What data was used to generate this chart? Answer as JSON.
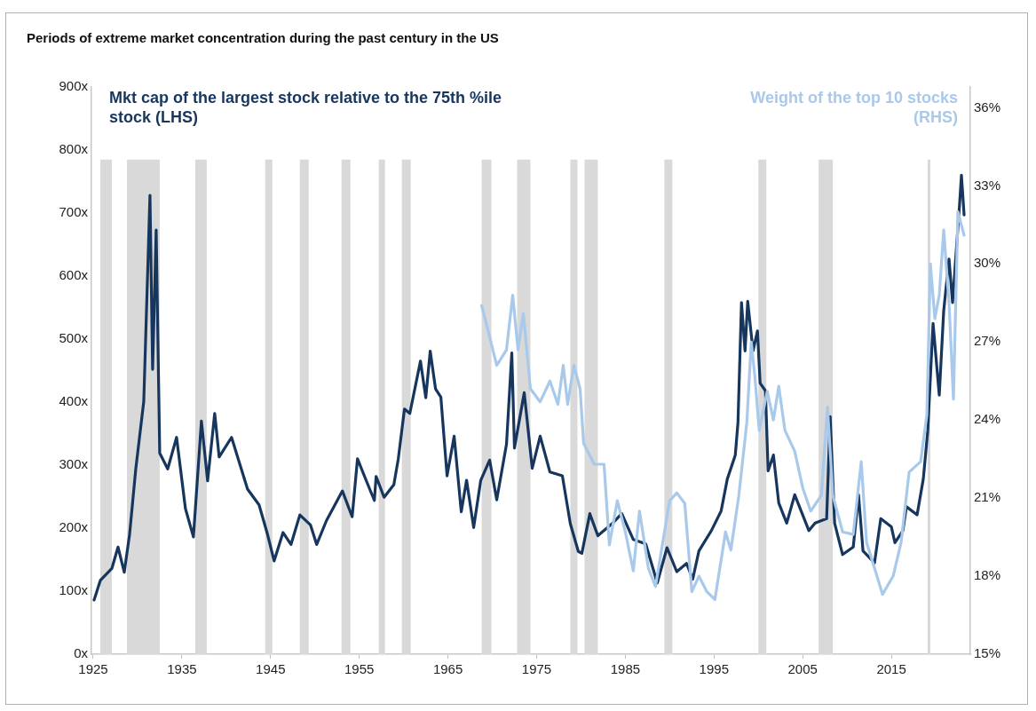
{
  "chart_data": {
    "type": "line",
    "title": "Periods of extreme market concentration during the past century in the US",
    "xlim": [
      1924.8,
      2023.9
    ],
    "xticks": [
      1925,
      1935,
      1945,
      1955,
      1965,
      1975,
      1985,
      1995,
      2005,
      2015
    ],
    "ylim": [
      0,
      900
    ],
    "yticks": [
      {
        "value": 0,
        "label": "0x"
      },
      {
        "value": 100,
        "label": "100x"
      },
      {
        "value": 200,
        "label": "200x"
      },
      {
        "value": 300,
        "label": "300x"
      },
      {
        "value": 400,
        "label": "400x"
      },
      {
        "value": 500,
        "label": "500x"
      },
      {
        "value": 600,
        "label": "600x"
      },
      {
        "value": 700,
        "label": "700x"
      },
      {
        "value": 800,
        "label": "800x"
      },
      {
        "value": 900,
        "label": "900x"
      }
    ],
    "y2lim": [
      15,
      36.8
    ],
    "y2ticks": [
      {
        "value": 15,
        "label": "15%"
      },
      {
        "value": 18,
        "label": "18%"
      },
      {
        "value": 21,
        "label": "21%"
      },
      {
        "value": 24,
        "label": "24%"
      },
      {
        "value": 27,
        "label": "27%"
      },
      {
        "value": 30,
        "label": "30%"
      },
      {
        "value": 33,
        "label": "33%"
      },
      {
        "value": 36,
        "label": "36%"
      }
    ],
    "grid": false,
    "marker": "none",
    "line_style": "solid",
    "series": [
      {
        "name": "Mkt cap of the largest stock relative to the 75th %ile stock (LHS)",
        "color": "#17365d",
        "axis": "y",
        "x": [
          1925.1,
          1925.8,
          1927.1,
          1927.8,
          1928.5,
          1929.1,
          1929.8,
          1930.7,
          1931.4,
          1931.7,
          1932.1,
          1932.5,
          1933.4,
          1934.4,
          1935.4,
          1936.3,
          1937.2,
          1937.9,
          1938.7,
          1939.2,
          1940.6,
          1942.4,
          1943.7,
          1944.6,
          1945.4,
          1946.4,
          1947.3,
          1948.3,
          1949.5,
          1950.2,
          1951.3,
          1953.1,
          1954.2,
          1954.8,
          1955.8,
          1956.7,
          1956.9,
          1957.8,
          1958.9,
          1959.4,
          1960.1,
          1960.7,
          1961.9,
          1962.5,
          1963.0,
          1963.6,
          1964.2,
          1964.9,
          1965.7,
          1966.5,
          1967.1,
          1967.9,
          1968.7,
          1969.7,
          1970.5,
          1971.6,
          1972.2,
          1972.5,
          1973.6,
          1974.5,
          1975.4,
          1976.5,
          1977.9,
          1978.8,
          1979.7,
          1980.1,
          1981.0,
          1981.9,
          1983.5,
          1984.6,
          1985.9,
          1987.3,
          1988.6,
          1989.7,
          1990.8,
          1991.9,
          1992.6,
          1993.3,
          1994.7,
          1995.8,
          1996.5,
          1997.4,
          1997.7,
          1998.1,
          1998.5,
          1998.8,
          1999.4,
          1999.9,
          2000.2,
          2000.8,
          2001.1,
          2001.7,
          2002.3,
          2003.2,
          2004.1,
          2005.0,
          2005.7,
          2006.4,
          2007.7,
          2008.1,
          2008.6,
          2009.5,
          2010.7,
          2011.3,
          2011.8,
          2013.1,
          2013.8,
          2015.0,
          2015.4,
          2016.3,
          2016.7,
          2017.9,
          2018.6,
          2019.1,
          2019.7,
          2020.4,
          2020.9,
          2021.5,
          2021.9,
          2022.7,
          2022.9,
          2023.2
        ],
        "values": [
          86,
          117,
          136,
          170,
          130,
          190,
          294,
          401,
          728,
          452,
          673,
          319,
          294,
          344,
          231,
          186,
          370,
          275,
          382,
          313,
          344,
          262,
          237,
          193,
          148,
          193,
          174,
          221,
          205,
          174,
          212,
          259,
          218,
          310,
          275,
          244,
          282,
          249,
          269,
          310,
          389,
          382,
          465,
          407,
          481,
          421,
          408,
          283,
          346,
          226,
          276,
          201,
          276,
          308,
          245,
          333,
          478,
          327,
          415,
          295,
          346,
          289,
          283,
          207,
          163,
          160,
          223,
          188,
          207,
          223,
          182,
          175,
          113,
          169,
          131,
          144,
          119,
          164,
          196,
          227,
          278,
          316,
          367,
          558,
          481,
          560,
          481,
          513,
          430,
          418,
          291,
          316,
          240,
          208,
          253,
          221,
          196,
          208,
          215,
          377,
          208,
          158,
          170,
          253,
          164,
          145,
          215,
          202,
          177,
          196,
          234,
          221,
          278,
          354,
          525,
          411,
          545,
          627,
          558,
          716,
          760,
          697
        ]
      },
      {
        "name": "Weight of the top 10 stocks (RHS)",
        "color": "#a9c9ea",
        "axis": "y2",
        "x": [
          1968.8,
          1969.4,
          1970.5,
          1971.6,
          1972.3,
          1972.9,
          1973.5,
          1974.3,
          1975.4,
          1976.5,
          1977.4,
          1978.0,
          1978.5,
          1979.2,
          1979.9,
          1980.3,
          1981.5,
          1982.6,
          1983.2,
          1984.1,
          1985.0,
          1985.9,
          1986.6,
          1987.6,
          1988.4,
          1990.0,
          1990.8,
          1991.7,
          1992.5,
          1993.3,
          1994.2,
          1995.1,
          1996.3,
          1996.9,
          1997.8,
          1998.7,
          1999.2,
          1999.6,
          2000.1,
          2001.0,
          2001.7,
          2002.3,
          2003.0,
          2004.1,
          2005.0,
          2005.9,
          2007.1,
          2007.8,
          2008.4,
          2009.5,
          2010.7,
          2011.6,
          2012.2,
          2013.2,
          2014.0,
          2015.2,
          2016.1,
          2017.0,
          2018.3,
          2019.0,
          2019.4,
          2019.9,
          2020.4,
          2020.9,
          2021.5,
          2022.0,
          2022.5,
          2023.2
        ],
        "values": [
          28.4,
          27.6,
          26.1,
          26.7,
          28.8,
          26.7,
          28.1,
          25.2,
          24.7,
          25.5,
          24.6,
          26.1,
          24.6,
          26.1,
          25.2,
          23.1,
          22.3,
          22.3,
          19.2,
          20.9,
          19.7,
          18.2,
          20.5,
          18.3,
          17.6,
          20.9,
          21.2,
          20.8,
          17.4,
          18.0,
          17.4,
          17.1,
          19.7,
          19.0,
          21.1,
          23.9,
          27.0,
          25.7,
          23.6,
          25.1,
          24.0,
          25.3,
          23.6,
          22.8,
          21.4,
          20.5,
          21.1,
          24.5,
          21.1,
          19.7,
          19.6,
          22.4,
          19.3,
          18.2,
          17.3,
          18.0,
          19.3,
          22.0,
          22.4,
          24.2,
          30.0,
          27.9,
          28.8,
          31.3,
          28.5,
          24.8,
          32.0,
          31.1
        ]
      }
    ],
    "bands": [
      {
        "axis": "x",
        "from": 1925.8,
        "to": 1927.1,
        "color": "#d9d9d9"
      },
      {
        "axis": "x",
        "from": 1928.8,
        "to": 1932.5,
        "color": "#d9d9d9"
      },
      {
        "axis": "x",
        "from": 1936.5,
        "to": 1937.8,
        "color": "#d9d9d9"
      },
      {
        "axis": "x",
        "from": 1944.4,
        "to": 1945.2,
        "color": "#d9d9d9"
      },
      {
        "axis": "x",
        "from": 1948.3,
        "to": 1949.3,
        "color": "#d9d9d9"
      },
      {
        "axis": "x",
        "from": 1953.0,
        "to": 1954.0,
        "color": "#d9d9d9"
      },
      {
        "axis": "x",
        "from": 1957.2,
        "to": 1957.9,
        "color": "#d9d9d9"
      },
      {
        "axis": "x",
        "from": 1959.8,
        "to": 1960.8,
        "color": "#d9d9d9"
      },
      {
        "axis": "x",
        "from": 1968.8,
        "to": 1969.9,
        "color": "#d9d9d9"
      },
      {
        "axis": "x",
        "from": 1972.8,
        "to": 1974.3,
        "color": "#d9d9d9"
      },
      {
        "axis": "x",
        "from": 1978.8,
        "to": 1979.6,
        "color": "#d9d9d9"
      },
      {
        "axis": "x",
        "from": 1980.4,
        "to": 1981.9,
        "color": "#d9d9d9"
      },
      {
        "axis": "x",
        "from": 1989.4,
        "to": 1990.3,
        "color": "#d9d9d9"
      },
      {
        "axis": "x",
        "from": 2000.0,
        "to": 2000.9,
        "color": "#d9d9d9"
      },
      {
        "axis": "x",
        "from": 2006.8,
        "to": 2008.4,
        "color": "#d9d9d9"
      },
      {
        "axis": "x",
        "from": 2019.1,
        "to": 2019.4,
        "color": "#d9d9d9"
      }
    ]
  }
}
